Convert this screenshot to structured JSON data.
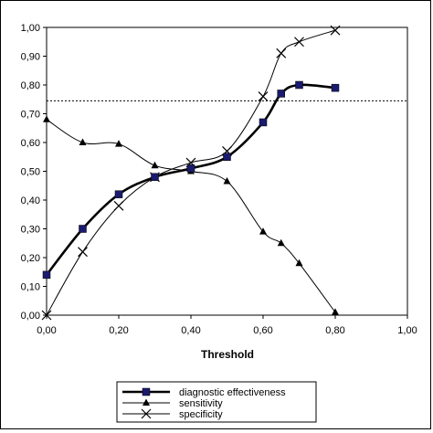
{
  "chart_data": {
    "type": "line",
    "title": "",
    "xlabel": "Threshold",
    "ylabel": "",
    "xlim": [
      0,
      1
    ],
    "ylim": [
      0,
      1
    ],
    "x_ticks": [
      "0,00",
      "0,20",
      "0,40",
      "0,60",
      "0,80",
      "1,00"
    ],
    "y_ticks": [
      "0,00",
      "0,10",
      "0,20",
      "0,30",
      "0,40",
      "0,50",
      "0,60",
      "0,70",
      "0,80",
      "0,90",
      "1,00"
    ],
    "reference_line": {
      "y": 0.745,
      "style": "dotted"
    },
    "grid": false,
    "legend": "bottom",
    "series": [
      {
        "name": "diagnostic effectiveness",
        "marker": "square",
        "line_width": "thick",
        "color": "#000000",
        "marker_color": "#1a1a6e",
        "x": [
          0.0,
          0.1,
          0.2,
          0.3,
          0.4,
          0.5,
          0.6,
          0.65,
          0.7,
          0.8
        ],
        "y": [
          0.14,
          0.3,
          0.42,
          0.48,
          0.51,
          0.55,
          0.67,
          0.77,
          0.8,
          0.79
        ]
      },
      {
        "name": "sensitivity",
        "marker": "triangle",
        "line_width": "thin",
        "color": "#000000",
        "x": [
          0.0,
          0.1,
          0.2,
          0.3,
          0.4,
          0.5,
          0.6,
          0.65,
          0.7,
          0.8
        ],
        "y": [
          0.68,
          0.6,
          0.595,
          0.52,
          0.5,
          0.465,
          0.29,
          0.25,
          0.18,
          0.01
        ]
      },
      {
        "name": "specificity",
        "marker": "x",
        "line_width": "thin",
        "color": "#000000",
        "x": [
          0.0,
          0.1,
          0.2,
          0.3,
          0.4,
          0.5,
          0.6,
          0.65,
          0.7,
          0.8
        ],
        "y": [
          0.0,
          0.22,
          0.38,
          0.48,
          0.53,
          0.57,
          0.76,
          0.91,
          0.95,
          0.99
        ]
      }
    ]
  }
}
